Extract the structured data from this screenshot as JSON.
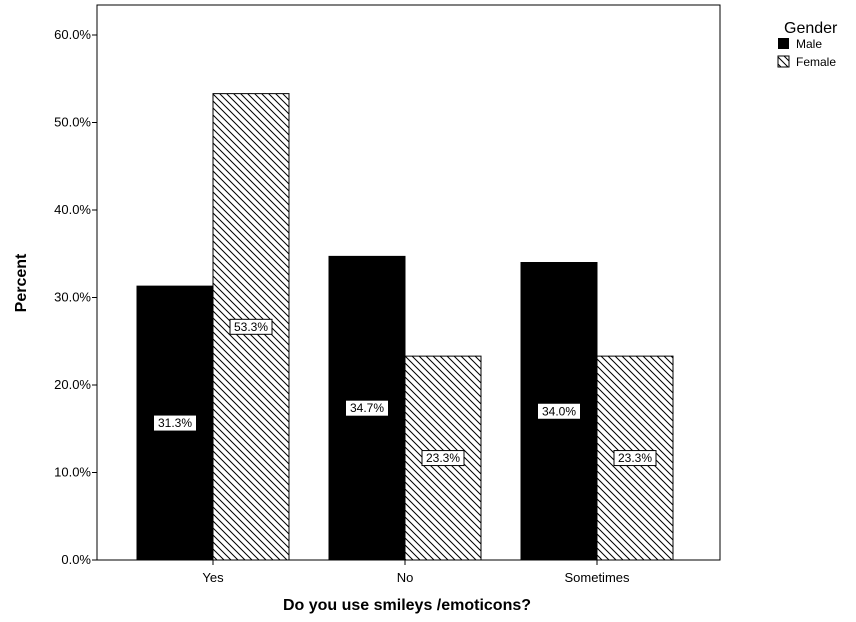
{
  "chart_data": {
    "type": "bar",
    "categories": [
      "Yes",
      "No",
      "Sometimes"
    ],
    "series": [
      {
        "name": "Male",
        "values": [
          31.3,
          34.7,
          34.0
        ],
        "labels": [
          "31.3%",
          "34.7%",
          "34.0%"
        ],
        "fill": "solid",
        "color": "#000000"
      },
      {
        "name": "Female",
        "values": [
          53.3,
          23.3,
          23.3
        ],
        "labels": [
          "53.3%",
          "23.3%",
          "23.3%"
        ],
        "fill": "diagonal-hatch",
        "color": "#000000"
      }
    ],
    "xlabel": "Do you use smileys /emoticons?",
    "ylabel": "Percent",
    "ylim": [
      0,
      60
    ],
    "yticks": [
      0,
      10,
      20,
      30,
      40,
      50,
      60
    ],
    "ytick_labels": [
      "0.0%",
      "10.0%",
      "20.0%",
      "30.0%",
      "40.0%",
      "50.0%",
      "60.0%"
    ],
    "legend": {
      "title": "Gender",
      "placement": "top-right outside",
      "entries": [
        "Male",
        "Female"
      ]
    },
    "grid": false
  }
}
